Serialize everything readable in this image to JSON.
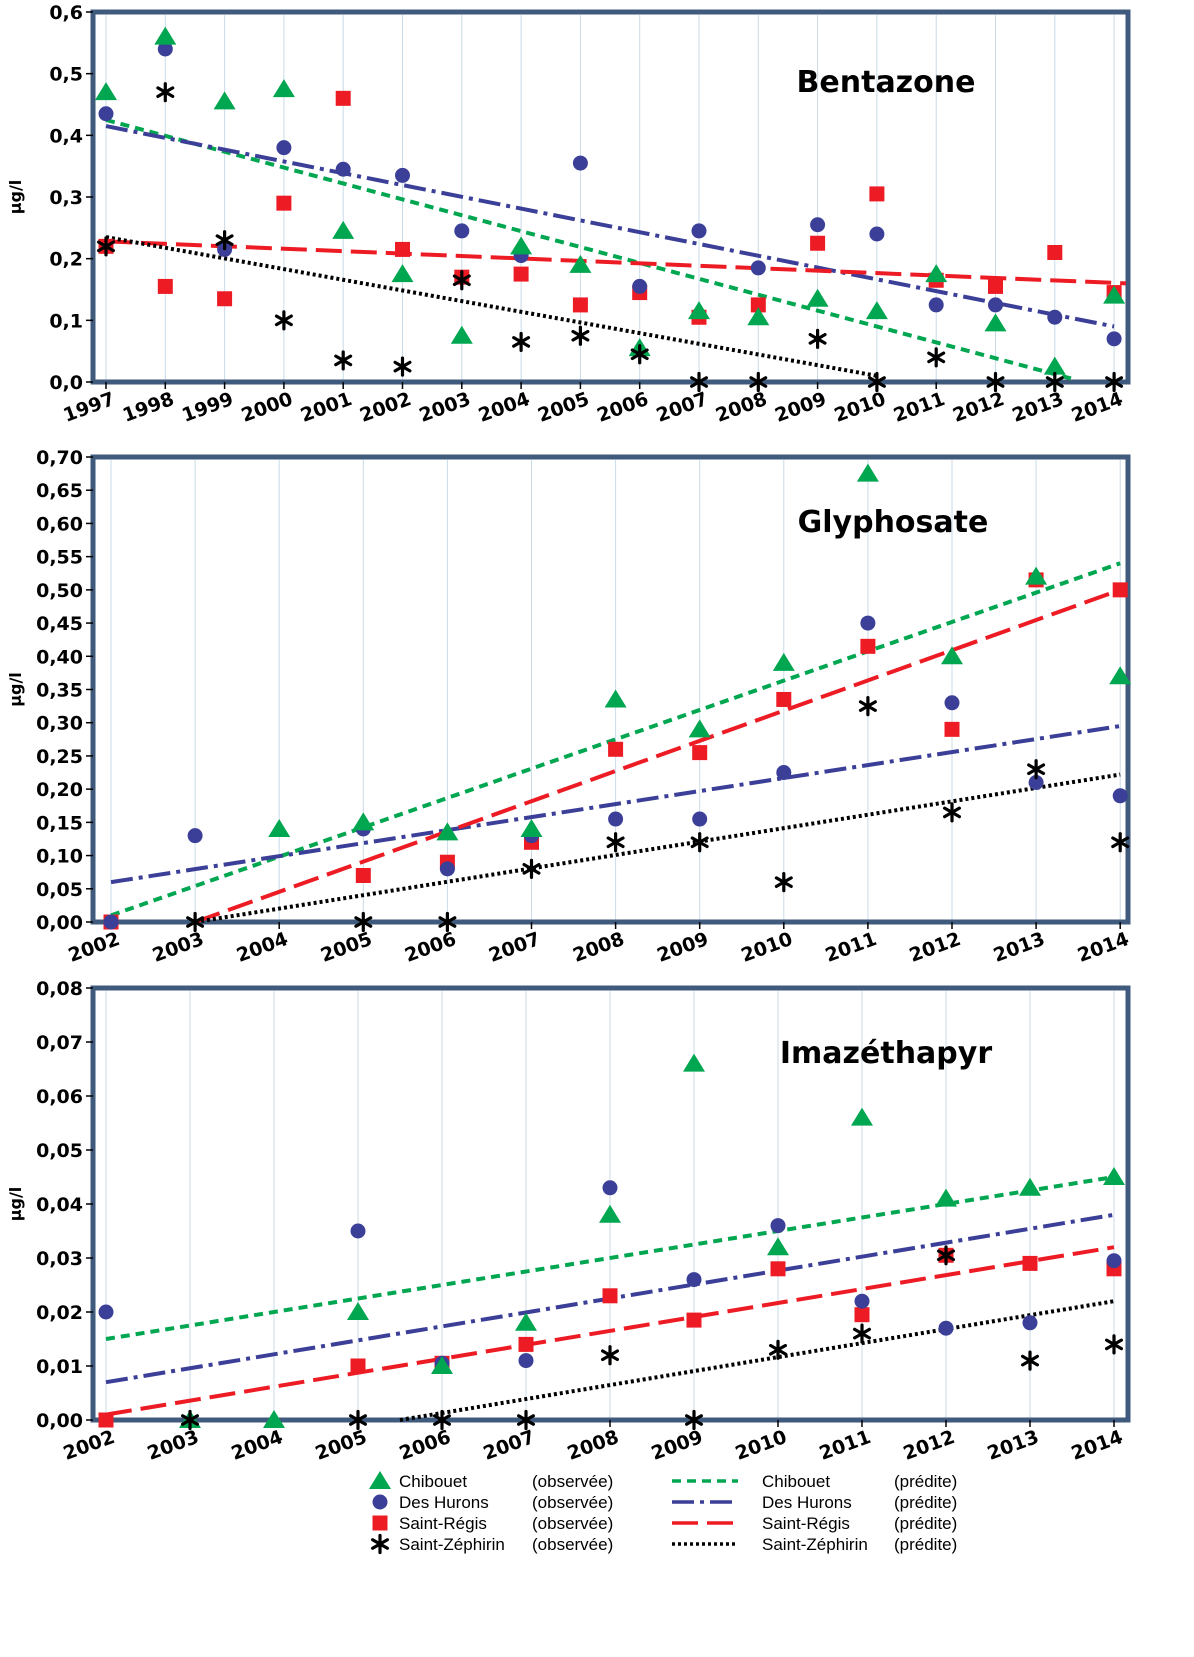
{
  "colors": {
    "chibouet": "#00a650",
    "des_hurons": "#3b3f97",
    "saint_regis": "#ed1c24",
    "saint_zephirin": "#000000",
    "frame": "#3f5a7c",
    "gridline": "#c8dbe8"
  },
  "legend": {
    "observed_suffix": "(observée)",
    "predicted_suffix": "(prédite)",
    "names": [
      "Chibouet",
      "Des Hurons",
      "Saint-Régis",
      "Saint-Zéphirin"
    ]
  },
  "chart_data": [
    {
      "type": "scatter",
      "title": "Bentazone",
      "ylabel": "µg/l",
      "xlabel": "",
      "categories": [
        "1997",
        "1998",
        "1999",
        "2000",
        "2001",
        "2002",
        "2003",
        "2004",
        "2005",
        "2006",
        "2007",
        "2008",
        "2009",
        "2010",
        "2011",
        "2012",
        "2013",
        "2014"
      ],
      "ylim": [
        0,
        0.6
      ],
      "yticks": [
        "0,0",
        "0,1",
        "0,2",
        "0,3",
        "0,4",
        "0,5",
        "0,6"
      ],
      "series": [
        {
          "name": "Chibouet",
          "kind": "observed",
          "marker": "triangle",
          "values": [
            0.47,
            0.56,
            0.455,
            0.475,
            0.245,
            0.175,
            0.075,
            0.22,
            0.19,
            0.055,
            0.115,
            0.105,
            0.135,
            0.115,
            0.175,
            0.095,
            0.025,
            0.14
          ]
        },
        {
          "name": "Des Hurons",
          "kind": "observed",
          "marker": "circle",
          "values": [
            0.435,
            0.54,
            0.215,
            0.38,
            0.345,
            0.335,
            0.245,
            0.205,
            0.355,
            0.155,
            0.245,
            0.185,
            0.255,
            0.24,
            0.125,
            0.125,
            0.105,
            0.07
          ]
        },
        {
          "name": "Saint-Régis",
          "kind": "observed",
          "marker": "square",
          "values": [
            0.22,
            0.155,
            0.135,
            0.29,
            0.46,
            0.215,
            0.17,
            0.175,
            0.125,
            0.145,
            0.105,
            0.125,
            0.225,
            0.305,
            0.165,
            0.155,
            0.21,
            0.145
          ]
        },
        {
          "name": "Saint-Zéphirin",
          "kind": "observed",
          "marker": "asterisk",
          "values": [
            0.22,
            0.47,
            0.23,
            0.1,
            0.035,
            0.025,
            0.165,
            0.065,
            0.075,
            0.045,
            0.0,
            0.0,
            0.07,
            0.0,
            0.04,
            0.0,
            0.0,
            0.0
          ]
        },
        {
          "name": "Chibouet",
          "kind": "predicted",
          "line": "dashed",
          "x": [
            1997,
            2013.3
          ],
          "values": [
            0.425,
            0.005
          ]
        },
        {
          "name": "Des Hurons",
          "kind": "predicted",
          "line": "dashdot",
          "x": [
            1997,
            2014
          ],
          "values": [
            0.415,
            0.09
          ]
        },
        {
          "name": "Saint-Régis",
          "kind": "predicted",
          "line": "longdash",
          "x": [
            1997,
            2014.2
          ],
          "values": [
            0.228,
            0.16
          ]
        },
        {
          "name": "Saint-Zéphirin",
          "kind": "predicted",
          "line": "dotted",
          "x": [
            1997,
            2010
          ],
          "values": [
            0.235,
            0.01
          ]
        }
      ]
    },
    {
      "type": "scatter",
      "title": "Glyphosate",
      "ylabel": "µg/l",
      "xlabel": "",
      "categories": [
        "2002",
        "2003",
        "2004",
        "2005",
        "2006",
        "2007",
        "2008",
        "2009",
        "2010",
        "2011",
        "2012",
        "2013",
        "2014"
      ],
      "ylim": [
        0,
        0.7
      ],
      "yticks": [
        "0,00",
        "0,05",
        "0,10",
        "0,15",
        "0,20",
        "0,25",
        "0,30",
        "0,35",
        "0,40",
        "0,45",
        "0,50",
        "0,55",
        "0,60",
        "0,65",
        "0,70"
      ],
      "series": [
        {
          "name": "Chibouet",
          "kind": "observed",
          "marker": "triangle",
          "values": [
            null,
            null,
            0.14,
            0.15,
            0.135,
            0.14,
            0.335,
            0.29,
            0.39,
            0.675,
            0.4,
            0.52,
            0.37
          ]
        },
        {
          "name": "Des Hurons",
          "kind": "observed",
          "marker": "circle",
          "values": [
            0.0,
            0.13,
            null,
            0.14,
            0.08,
            0.13,
            0.155,
            0.155,
            0.225,
            0.45,
            0.33,
            0.21,
            0.19
          ]
        },
        {
          "name": "Saint-Régis",
          "kind": "observed",
          "marker": "square",
          "values": [
            0.0,
            null,
            null,
            0.07,
            0.09,
            0.12,
            0.26,
            0.255,
            0.335,
            0.415,
            0.29,
            0.515,
            0.5
          ]
        },
        {
          "name": "Saint-Zéphirin",
          "kind": "observed",
          "marker": "asterisk",
          "values": [
            null,
            0.0,
            null,
            0.0,
            0.0,
            0.08,
            0.12,
            0.12,
            0.06,
            0.325,
            0.165,
            0.23,
            0.12
          ]
        },
        {
          "name": "Chibouet",
          "kind": "predicted",
          "line": "dashed",
          "x": [
            2002,
            2014
          ],
          "values": [
            0.01,
            0.54
          ]
        },
        {
          "name": "Des Hurons",
          "kind": "predicted",
          "line": "dashdot",
          "x": [
            2002,
            2014
          ],
          "values": [
            0.06,
            0.295
          ]
        },
        {
          "name": "Saint-Régis",
          "kind": "predicted",
          "line": "longdash",
          "x": [
            2003,
            2014
          ],
          "values": [
            0.0,
            0.5
          ]
        },
        {
          "name": "Saint-Zéphirin",
          "kind": "predicted",
          "line": "dotted",
          "x": [
            2003,
            2014
          ],
          "values": [
            0.0,
            0.222
          ]
        }
      ]
    },
    {
      "type": "scatter",
      "title": "Imazéthapyr",
      "ylabel": "µg/l",
      "xlabel": "",
      "categories": [
        "2002",
        "2003",
        "2004",
        "2005",
        "2006",
        "2007",
        "2008",
        "2009",
        "2010",
        "2011",
        "2012",
        "2013",
        "2014"
      ],
      "ylim": [
        0,
        0.08
      ],
      "yticks": [
        "0,00",
        "0,01",
        "0,02",
        "0,03",
        "0,04",
        "0,05",
        "0,06",
        "0,07",
        "0,08"
      ],
      "series": [
        {
          "name": "Chibouet",
          "kind": "observed",
          "marker": "triangle",
          "values": [
            null,
            0.0,
            0.0,
            0.02,
            0.01,
            0.018,
            0.038,
            0.066,
            0.032,
            0.056,
            0.041,
            0.043,
            0.045
          ]
        },
        {
          "name": "Des Hurons",
          "kind": "observed",
          "marker": "circle",
          "values": [
            0.02,
            null,
            null,
            0.035,
            0.0105,
            0.011,
            0.043,
            0.026,
            0.036,
            0.022,
            0.017,
            0.018,
            0.0295
          ]
        },
        {
          "name": "Saint-Régis",
          "kind": "observed",
          "marker": "square",
          "values": [
            0.0,
            null,
            null,
            0.01,
            0.0105,
            0.014,
            0.023,
            0.0185,
            0.028,
            0.0195,
            0.0305,
            0.029,
            0.028
          ]
        },
        {
          "name": "Saint-Zéphirin",
          "kind": "observed",
          "marker": "asterisk",
          "values": [
            null,
            0.0,
            null,
            0.0,
            0.0,
            0.0,
            0.012,
            0.0,
            0.013,
            0.016,
            0.0305,
            0.011,
            0.014
          ]
        },
        {
          "name": "Chibouet",
          "kind": "predicted",
          "line": "dashed",
          "x": [
            2002,
            2014
          ],
          "values": [
            0.015,
            0.045
          ]
        },
        {
          "name": "Des Hurons",
          "kind": "predicted",
          "line": "dashdot",
          "x": [
            2002,
            2014
          ],
          "values": [
            0.007,
            0.038
          ]
        },
        {
          "name": "Saint-Régis",
          "kind": "predicted",
          "line": "longdash",
          "x": [
            2002,
            2014
          ],
          "values": [
            0.001,
            0.032
          ]
        },
        {
          "name": "Saint-Zéphirin",
          "kind": "predicted",
          "line": "dotted",
          "x": [
            2005.5,
            2014
          ],
          "values": [
            0.0,
            0.022
          ]
        }
      ]
    }
  ]
}
